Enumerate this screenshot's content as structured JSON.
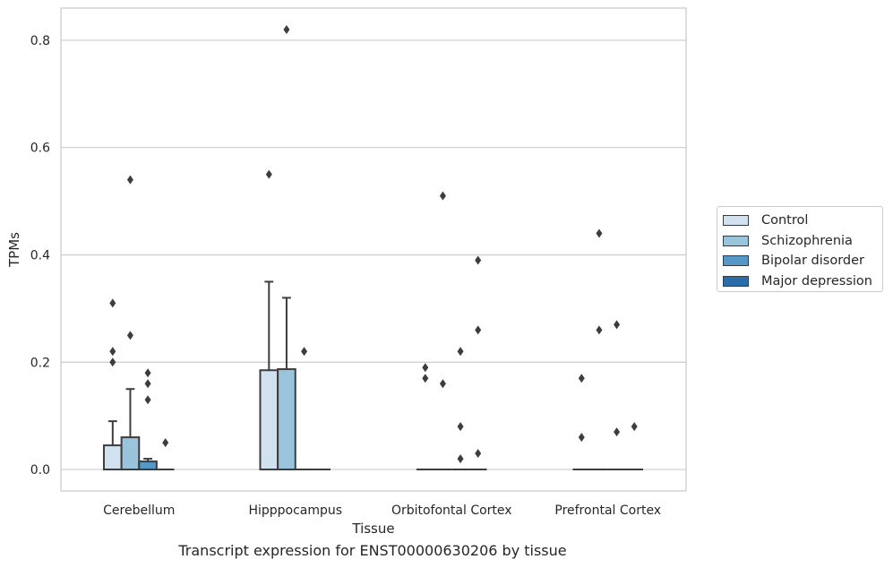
{
  "chart_data": {
    "type": "box",
    "title": "Transcript expression for ENST00000630206 by tissue",
    "xlabel": "Tissue",
    "ylabel": "TPMs",
    "ylim": [
      -0.04,
      0.86
    ],
    "yticks": [
      "0.0",
      "0.2",
      "0.4",
      "0.6",
      "0.8"
    ],
    "grid": true,
    "legend_position": "right",
    "categories": [
      "Cerebellum",
      "Hipppocampus",
      "Orbitofontal Cortex",
      "Prefrontal Cortex"
    ],
    "series": [
      {
        "name": "Control",
        "color": "#d2e1f0",
        "boxes": [
          {
            "q1": 0,
            "median": 0,
            "q3": 0.045,
            "whisker_low": 0,
            "whisker_high": 0.09,
            "outliers": [
              0.2,
              0.22,
              0.31
            ]
          },
          {
            "q1": 0,
            "median": 0,
            "q3": 0.185,
            "whisker_low": 0,
            "whisker_high": 0.35,
            "outliers": [
              0.55
            ]
          },
          {
            "q1": 0,
            "median": 0,
            "q3": 0,
            "whisker_low": 0,
            "whisker_high": 0,
            "outliers": [
              0.17,
              0.19
            ]
          },
          {
            "q1": 0,
            "median": 0,
            "q3": 0,
            "whisker_low": 0,
            "whisker_high": 0,
            "outliers": [
              0.06,
              0.17
            ]
          }
        ]
      },
      {
        "name": "Schizophrenia",
        "color": "#9ac3dc",
        "boxes": [
          {
            "q1": 0,
            "median": 0,
            "q3": 0.06,
            "whisker_low": 0,
            "whisker_high": 0.15,
            "outliers": [
              0.25,
              0.54
            ]
          },
          {
            "q1": 0,
            "median": 0,
            "q3": 0.187,
            "whisker_low": 0,
            "whisker_high": 0.32,
            "outliers": [
              0.82
            ]
          },
          {
            "q1": 0,
            "median": 0,
            "q3": 0,
            "whisker_low": 0,
            "whisker_high": 0,
            "outliers": [
              0.16,
              0.51
            ]
          },
          {
            "q1": 0,
            "median": 0,
            "q3": 0,
            "whisker_low": 0,
            "whisker_high": 0,
            "outliers": [
              0.26,
              0.44
            ]
          }
        ]
      },
      {
        "name": "Bipolar disorder",
        "color": "#5597c6",
        "boxes": [
          {
            "q1": 0,
            "median": 0,
            "q3": 0.015,
            "whisker_low": 0,
            "whisker_high": 0.02,
            "outliers": [
              0.13,
              0.16,
              0.18
            ]
          },
          {
            "q1": 0,
            "median": 0,
            "q3": 0,
            "whisker_low": 0,
            "whisker_high": 0,
            "outliers": [
              0.22
            ]
          },
          {
            "q1": 0,
            "median": 0,
            "q3": 0,
            "whisker_low": 0,
            "whisker_high": 0,
            "outliers": [
              0.02,
              0.08,
              0.22
            ]
          },
          {
            "q1": 0,
            "median": 0,
            "q3": 0,
            "whisker_low": 0,
            "whisker_high": 0,
            "outliers": [
              0.07,
              0.27
            ]
          }
        ]
      },
      {
        "name": "Major depression",
        "color": "#2b6da8",
        "boxes": [
          {
            "q1": 0,
            "median": 0,
            "q3": 0,
            "whisker_low": 0,
            "whisker_high": 0,
            "outliers": [
              0.05
            ]
          },
          {
            "q1": 0,
            "median": 0,
            "q3": 0,
            "whisker_low": 0,
            "whisker_high": 0,
            "outliers": []
          },
          {
            "q1": 0,
            "median": 0,
            "q3": 0,
            "whisker_low": 0,
            "whisker_high": 0,
            "outliers": [
              0.03,
              0.26,
              0.39
            ]
          },
          {
            "q1": 0,
            "median": 0,
            "q3": 0,
            "whisker_low": 0,
            "whisker_high": 0,
            "outliers": [
              0.08
            ]
          }
        ]
      }
    ]
  }
}
